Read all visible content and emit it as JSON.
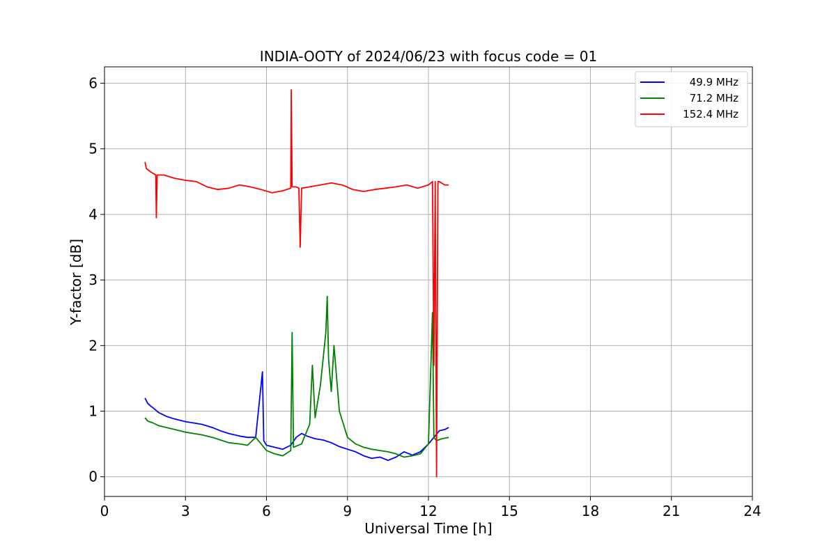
{
  "chart_data": {
    "type": "line",
    "title": "INDIA-OOTY of 2024/06/23 with focus code = 01",
    "xlabel": "Universal Time [h]",
    "ylabel": "Y-factor [dB]",
    "xlim": [
      0,
      24
    ],
    "ylim": [
      -0.3,
      6.25
    ],
    "xticks": [
      0,
      3,
      6,
      9,
      12,
      15,
      18,
      21,
      24
    ],
    "yticks": [
      0,
      1,
      2,
      3,
      4,
      5,
      6
    ],
    "grid": true,
    "legend_position": "top-right",
    "series": [
      {
        "name": "49.9 MHz",
        "color": "#0000ff",
        "x": [
          1.5,
          1.6,
          1.7,
          1.8,
          2.0,
          2.3,
          2.6,
          3.0,
          3.3,
          3.6,
          4.0,
          4.3,
          4.6,
          5.0,
          5.3,
          5.6,
          5.85,
          5.9,
          6.0,
          6.3,
          6.6,
          6.9,
          7.1,
          7.3,
          7.5,
          7.8,
          8.1,
          8.4,
          8.7,
          9.0,
          9.3,
          9.6,
          9.9,
          10.2,
          10.5,
          10.8,
          11.1,
          11.4,
          11.7,
          12.0,
          12.2,
          12.4,
          12.6,
          12.75
        ],
        "y": [
          1.2,
          1.12,
          1.08,
          1.05,
          0.98,
          0.92,
          0.88,
          0.84,
          0.82,
          0.8,
          0.75,
          0.7,
          0.66,
          0.62,
          0.6,
          0.6,
          1.6,
          0.55,
          0.48,
          0.45,
          0.42,
          0.48,
          0.6,
          0.66,
          0.62,
          0.58,
          0.56,
          0.52,
          0.46,
          0.42,
          0.38,
          0.32,
          0.28,
          0.3,
          0.25,
          0.3,
          0.38,
          0.33,
          0.38,
          0.5,
          0.6,
          0.7,
          0.72,
          0.75
        ]
      },
      {
        "name": "71.2 MHz",
        "color": "#008000",
        "x": [
          1.5,
          1.6,
          1.8,
          2.0,
          2.3,
          2.6,
          3.0,
          3.3,
          3.6,
          4.0,
          4.3,
          4.6,
          5.0,
          5.3,
          5.6,
          5.8,
          6.0,
          6.3,
          6.6,
          6.9,
          6.95,
          7.0,
          7.3,
          7.6,
          7.7,
          7.8,
          8.0,
          8.2,
          8.25,
          8.3,
          8.4,
          8.5,
          8.7,
          9.0,
          9.3,
          9.6,
          9.9,
          10.2,
          10.5,
          10.8,
          11.1,
          11.4,
          11.7,
          12.0,
          12.15,
          12.2,
          12.3,
          12.5,
          12.75
        ],
        "y": [
          0.9,
          0.85,
          0.82,
          0.78,
          0.75,
          0.72,
          0.68,
          0.66,
          0.64,
          0.6,
          0.56,
          0.52,
          0.5,
          0.48,
          0.6,
          0.5,
          0.4,
          0.35,
          0.32,
          0.4,
          2.2,
          0.45,
          0.5,
          0.8,
          1.7,
          0.9,
          1.4,
          2.2,
          2.75,
          1.8,
          1.3,
          2.0,
          1.0,
          0.6,
          0.5,
          0.45,
          0.42,
          0.4,
          0.38,
          0.35,
          0.3,
          0.32,
          0.35,
          0.5,
          2.5,
          0.6,
          0.55,
          0.58,
          0.6
        ]
      },
      {
        "name": "152.4 MHz",
        "color": "#ff0000",
        "x": [
          1.5,
          1.55,
          1.7,
          1.9,
          1.92,
          1.95,
          2.2,
          2.6,
          3.0,
          3.4,
          3.8,
          4.2,
          4.6,
          5.0,
          5.4,
          5.8,
          6.2,
          6.6,
          6.9,
          6.92,
          6.95,
          7.1,
          7.2,
          7.25,
          7.3,
          7.6,
          8.0,
          8.4,
          8.8,
          9.2,
          9.6,
          10.0,
          10.4,
          10.8,
          11.2,
          11.6,
          12.0,
          12.15,
          12.2,
          12.25,
          12.3,
          12.35,
          12.4,
          12.6,
          12.75
        ],
        "y": [
          4.8,
          4.7,
          4.65,
          4.6,
          3.95,
          4.6,
          4.6,
          4.55,
          4.52,
          4.5,
          4.42,
          4.38,
          4.4,
          4.45,
          4.42,
          4.38,
          4.33,
          4.36,
          4.4,
          5.9,
          4.42,
          4.42,
          4.4,
          3.5,
          4.4,
          4.42,
          4.45,
          4.48,
          4.45,
          4.38,
          4.35,
          4.38,
          4.4,
          4.42,
          4.45,
          4.4,
          4.45,
          4.5,
          1.7,
          4.5,
          0.0,
          4.5,
          4.5,
          4.45,
          4.45
        ]
      }
    ]
  }
}
